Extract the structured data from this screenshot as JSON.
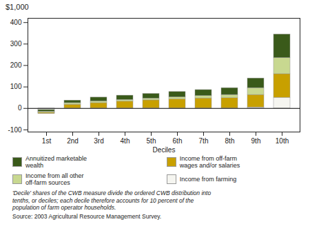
{
  "chart_data": {
    "type": "bar",
    "stacked": true,
    "categories": [
      "1st",
      "2nd",
      "3rd",
      "4th",
      "5th",
      "6th",
      "7th",
      "8th",
      "9th",
      "10th"
    ],
    "series": [
      {
        "name": "Income from farming",
        "color": "#f5f5f0",
        "values": [
          -25,
          0,
          0,
          0,
          0,
          0,
          0,
          0,
          5,
          50
        ]
      },
      {
        "name": "Income from off-farm\nwages and/or salaries",
        "color": "#c8a000",
        "values": [
          5,
          18,
          25,
          32,
          38,
          43,
          47,
          48,
          58,
          110
        ]
      },
      {
        "name": "Income from all other\noff-farm sources",
        "color": "#c8d890",
        "values": [
          5,
          7,
          8,
          8,
          8,
          9,
          11,
          15,
          32,
          75
        ]
      },
      {
        "name": "Annuitized marketable\nwealth",
        "color": "#3a5a1a",
        "values": [
          8,
          12,
          18,
          20,
          22,
          25,
          28,
          32,
          45,
          110
        ]
      }
    ],
    "ylabel": "$1,000",
    "xlabel": "Deciles",
    "ylim": [
      -110,
      420
    ],
    "yticks": [
      -100,
      0,
      100,
      200,
      300,
      400
    ],
    "grid": false,
    "legend": "bottom",
    "footnote": [
      "'Decile' shares of the CWB measure divide the ordered CWB distribution into",
      "tenths, or deciles; each decile therefore accounts for 10 percent of the",
      "population of farm operator households."
    ],
    "source": "Source: 2003 Agricultural Resource Management Survey."
  }
}
